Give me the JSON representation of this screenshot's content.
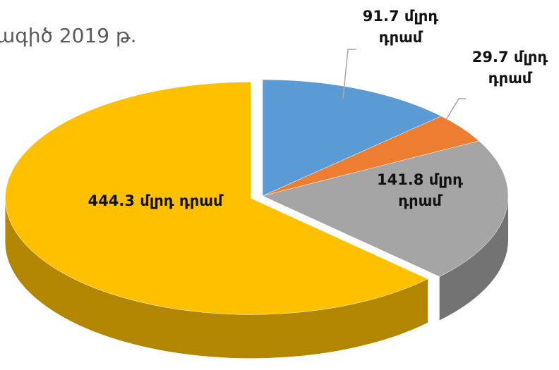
{
  "chart_data": {
    "type": "pie",
    "title": "ագիծ 2019 թ.",
    "values": [
      91.7,
      29.7,
      141.8,
      444.3
    ],
    "value_labels": [
      "91.7 մլրդ դրամ",
      "29.7 մլրդ դրամ",
      "141.8 մլրդ դրամ",
      "444.3 մլրդ դրամ"
    ],
    "colors": [
      "#5b9bd5",
      "#ed7d31",
      "#a5a5a5",
      "#ffc000"
    ]
  }
}
